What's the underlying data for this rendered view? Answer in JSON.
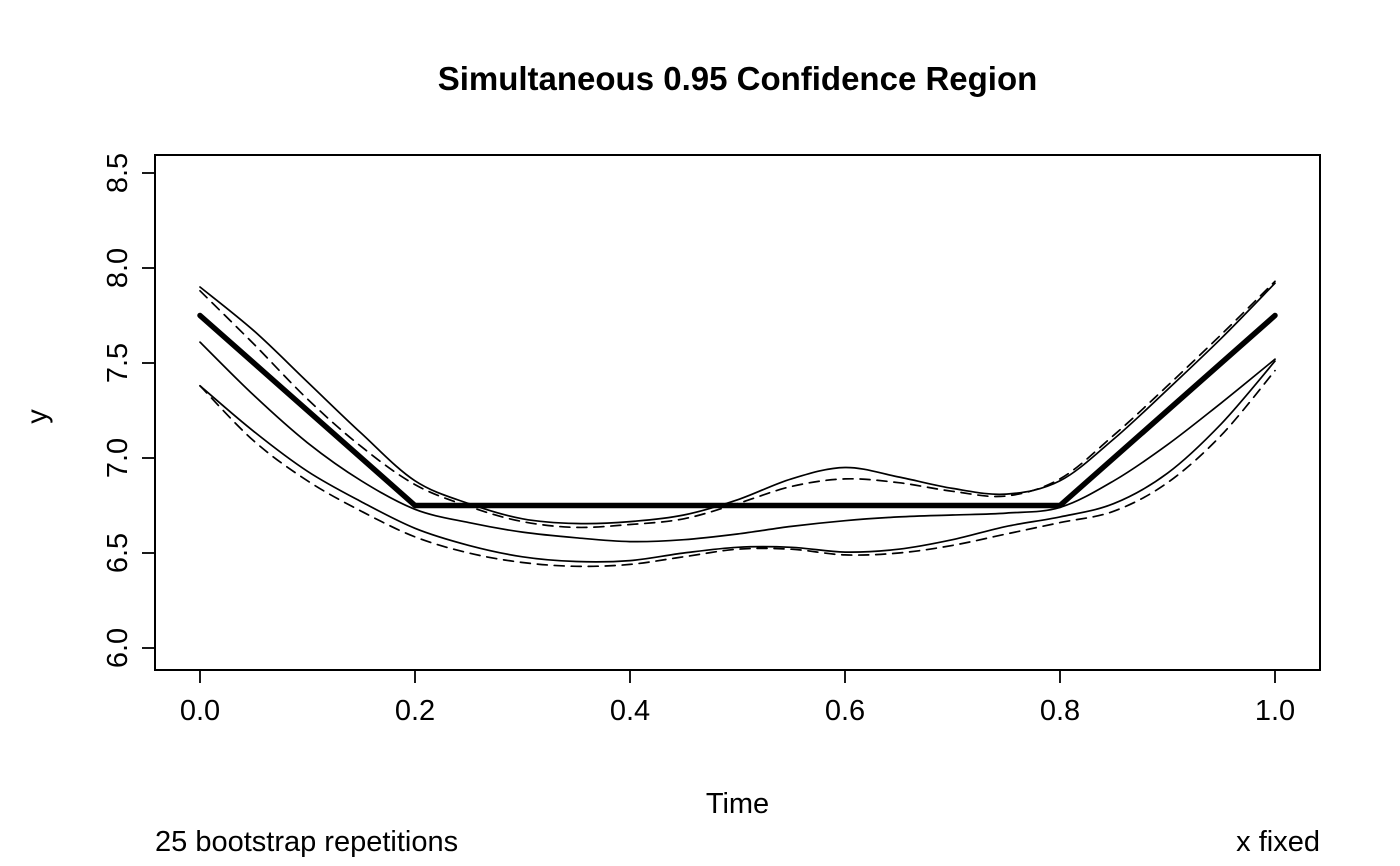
{
  "title": "Simultaneous 0.95 Confidence Region",
  "xlabel": "Time",
  "ylabel": "y",
  "footnote_left": "25 bootstrap repetitions",
  "footnote_right": "x fixed",
  "colors": {
    "foreground": "#000000",
    "background": "#ffffff"
  },
  "chart_data": {
    "type": "line",
    "title": "Simultaneous 0.95 Confidence Region",
    "xlabel": "Time",
    "ylabel": "y",
    "xlim": [
      0.0,
      1.0
    ],
    "ylim": [
      6.0,
      8.5
    ],
    "grid": false,
    "legend": "none",
    "box": true,
    "annotations": [
      "25 bootstrap repetitions",
      "x fixed"
    ],
    "x_ticks": {
      "values": [
        0.0,
        0.2,
        0.4,
        0.6,
        0.8,
        1.0
      ],
      "labels": [
        "0.0",
        "0.2",
        "0.4",
        "0.6",
        "0.8",
        "1.0"
      ]
    },
    "y_ticks": {
      "values": [
        6.0,
        6.5,
        7.0,
        7.5,
        8.0,
        8.5
      ],
      "labels": [
        "6.0",
        "6.5",
        "7.0",
        "7.5",
        "8.0",
        "8.5"
      ]
    },
    "series": [
      {
        "name": "estimate",
        "style": "solid",
        "stroke_width": 5.5,
        "smooth": false,
        "points": [
          [
            0.0,
            7.75
          ],
          [
            0.2,
            6.75
          ],
          [
            0.8,
            6.75
          ],
          [
            1.0,
            7.75
          ]
        ]
      },
      {
        "name": "upper-band-solid",
        "style": "solid",
        "stroke_width": 1.7,
        "smooth": true,
        "points": [
          [
            0.0,
            7.9
          ],
          [
            0.05,
            7.67
          ],
          [
            0.1,
            7.4
          ],
          [
            0.15,
            7.13
          ],
          [
            0.2,
            6.88
          ],
          [
            0.25,
            6.76
          ],
          [
            0.3,
            6.68
          ],
          [
            0.35,
            6.655
          ],
          [
            0.4,
            6.665
          ],
          [
            0.45,
            6.7
          ],
          [
            0.5,
            6.78
          ],
          [
            0.55,
            6.89
          ],
          [
            0.6,
            6.95
          ],
          [
            0.65,
            6.9
          ],
          [
            0.7,
            6.84
          ],
          [
            0.75,
            6.81
          ],
          [
            0.8,
            6.88
          ],
          [
            0.85,
            7.1
          ],
          [
            0.9,
            7.36
          ],
          [
            0.95,
            7.63
          ],
          [
            1.0,
            7.92
          ]
        ]
      },
      {
        "name": "upper-band-dashed",
        "style": "dashed",
        "stroke_width": 1.7,
        "smooth": true,
        "points": [
          [
            0.0,
            7.88
          ],
          [
            0.05,
            7.6
          ],
          [
            0.1,
            7.31
          ],
          [
            0.15,
            7.06
          ],
          [
            0.2,
            6.86
          ],
          [
            0.25,
            6.745
          ],
          [
            0.3,
            6.665
          ],
          [
            0.35,
            6.635
          ],
          [
            0.4,
            6.65
          ],
          [
            0.45,
            6.68
          ],
          [
            0.5,
            6.76
          ],
          [
            0.55,
            6.85
          ],
          [
            0.6,
            6.89
          ],
          [
            0.65,
            6.87
          ],
          [
            0.7,
            6.825
          ],
          [
            0.75,
            6.8
          ],
          [
            0.8,
            6.89
          ],
          [
            0.85,
            7.12
          ],
          [
            0.9,
            7.38
          ],
          [
            0.95,
            7.65
          ],
          [
            1.0,
            7.93
          ]
        ]
      },
      {
        "name": "center-curve-solid",
        "style": "solid",
        "stroke_width": 1.7,
        "smooth": true,
        "points": [
          [
            0.0,
            7.61
          ],
          [
            0.05,
            7.33
          ],
          [
            0.1,
            7.08
          ],
          [
            0.15,
            6.88
          ],
          [
            0.2,
            6.73
          ],
          [
            0.25,
            6.66
          ],
          [
            0.3,
            6.61
          ],
          [
            0.35,
            6.58
          ],
          [
            0.4,
            6.56
          ],
          [
            0.45,
            6.57
          ],
          [
            0.5,
            6.6
          ],
          [
            0.55,
            6.64
          ],
          [
            0.6,
            6.67
          ],
          [
            0.65,
            6.69
          ],
          [
            0.7,
            6.7
          ],
          [
            0.75,
            6.71
          ],
          [
            0.8,
            6.74
          ],
          [
            0.85,
            6.88
          ],
          [
            0.9,
            7.07
          ],
          [
            0.95,
            7.29
          ],
          [
            1.0,
            7.52
          ]
        ]
      },
      {
        "name": "lower-band-solid",
        "style": "solid",
        "stroke_width": 1.7,
        "smooth": true,
        "points": [
          [
            0.0,
            7.38
          ],
          [
            0.05,
            7.14
          ],
          [
            0.1,
            6.93
          ],
          [
            0.15,
            6.77
          ],
          [
            0.2,
            6.63
          ],
          [
            0.25,
            6.54
          ],
          [
            0.3,
            6.48
          ],
          [
            0.35,
            6.455
          ],
          [
            0.4,
            6.46
          ],
          [
            0.45,
            6.5
          ],
          [
            0.5,
            6.53
          ],
          [
            0.55,
            6.53
          ],
          [
            0.6,
            6.505
          ],
          [
            0.65,
            6.52
          ],
          [
            0.7,
            6.57
          ],
          [
            0.75,
            6.64
          ],
          [
            0.8,
            6.69
          ],
          [
            0.85,
            6.76
          ],
          [
            0.9,
            6.92
          ],
          [
            0.95,
            7.18
          ],
          [
            1.0,
            7.51
          ]
        ]
      },
      {
        "name": "lower-band-dashed",
        "style": "dashed",
        "stroke_width": 1.7,
        "smooth": true,
        "points": [
          [
            0.0,
            7.38
          ],
          [
            0.05,
            7.09
          ],
          [
            0.1,
            6.88
          ],
          [
            0.15,
            6.72
          ],
          [
            0.2,
            6.585
          ],
          [
            0.25,
            6.5
          ],
          [
            0.3,
            6.45
          ],
          [
            0.35,
            6.43
          ],
          [
            0.4,
            6.44
          ],
          [
            0.45,
            6.48
          ],
          [
            0.5,
            6.52
          ],
          [
            0.55,
            6.52
          ],
          [
            0.6,
            6.49
          ],
          [
            0.65,
            6.5
          ],
          [
            0.7,
            6.54
          ],
          [
            0.75,
            6.6
          ],
          [
            0.8,
            6.66
          ],
          [
            0.85,
            6.72
          ],
          [
            0.9,
            6.87
          ],
          [
            0.95,
            7.12
          ],
          [
            1.0,
            7.46
          ]
        ]
      }
    ]
  }
}
